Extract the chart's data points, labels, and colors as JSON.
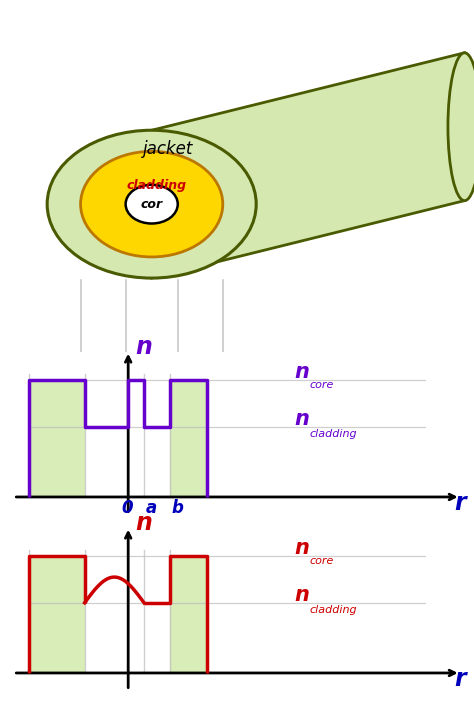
{
  "fig_width": 4.74,
  "fig_height": 7.04,
  "dpi": 100,
  "bg_color": "#ffffff",
  "fiber_jacket_color": "#d4e8b0",
  "fiber_jacket_edge": "#4a5a00",
  "fiber_cladding_color": "#ffd700",
  "fiber_core_color": "#ffffff",
  "fiber_core_edge": "#000000",
  "jacket_label": "jacket",
  "cladding_label": "cladding",
  "core_label": "cor",
  "step_color": "#6600cc",
  "graded_color": "#cc0000",
  "shading_color": "#d8edb8",
  "axis_color": "#000000",
  "guide_line_color": "#bbbbbb",
  "label_color_blue": "#0000bb",
  "n_label": "n",
  "r_label": "r",
  "0_label": "0",
  "a_label": "a",
  "b_label": "b",
  "ncore_sub": "core",
  "ncladding_sub": "cladding",
  "tube_jacket_color": "#d4e8b0",
  "tube_edge_color": "#4a5a00",
  "x_clad_L": -2.5,
  "x_core_L": -1.1,
  "x_zero": 0.0,
  "x_a": 0.4,
  "x_b": 1.05,
  "x_clad_R": 2.0,
  "n_core": 2.0,
  "n_clad": 1.2,
  "xlim_min": -3.0,
  "xlim_max": 8.5,
  "ylim_min": -0.35,
  "ylim_max": 2.6
}
